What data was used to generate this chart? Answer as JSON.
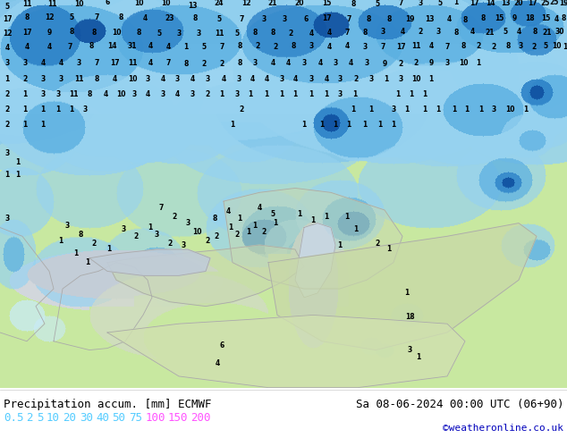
{
  "title_left": "Precipitation accum. [mm] ECMWF",
  "title_right": "Sa 08-06-2024 00:00 UTC (06+90)",
  "credit": "©weatheronline.co.uk",
  "colorbar_labels": [
    "0.5",
    "2",
    "5",
    "10",
    "20",
    "30",
    "40",
    "50",
    "75",
    "100",
    "150",
    "200"
  ],
  "colorbar_colors_text": [
    "#55ccff",
    "#55ccff",
    "#55ccff",
    "#55ccff",
    "#55ccff",
    "#55ccff",
    "#55ccff",
    "#55ccff",
    "#55ccff",
    "#ff55ff",
    "#ff55ff",
    "#ff55ff"
  ],
  "land_color": "#c8e8a0",
  "sea_color": "#aadcf0",
  "precip_colors": [
    [
      0.0,
      [
        200,
        240,
        255
      ]
    ],
    [
      0.1,
      [
        160,
        215,
        245
      ]
    ],
    [
      0.2,
      [
        110,
        185,
        230
      ]
    ],
    [
      0.35,
      [
        65,
        155,
        215
      ]
    ],
    [
      0.5,
      [
        30,
        120,
        195
      ]
    ],
    [
      0.65,
      [
        10,
        80,
        160
      ]
    ],
    [
      0.8,
      [
        5,
        45,
        130
      ]
    ],
    [
      0.9,
      [
        80,
        0,
        160
      ]
    ],
    [
      1.0,
      [
        200,
        0,
        200
      ]
    ]
  ],
  "bg_bottom": "#ffffff",
  "text_color": "#000000",
  "credit_color": "#0000bb",
  "figsize": [
    6.34,
    4.9
  ],
  "dpi": 100
}
